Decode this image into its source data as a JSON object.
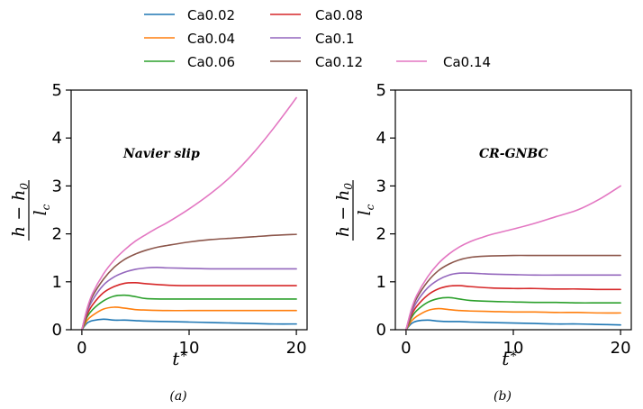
{
  "chart_data": [
    {
      "type": "line",
      "panel_label": "(a)",
      "annotation": "Navier slip",
      "xlabel": "t*",
      "ylabel": "h − h0 / lc",
      "xlim": [
        -1,
        21
      ],
      "ylim": [
        0,
        5
      ],
      "xticks": [
        "0",
        "10",
        "20"
      ],
      "yticks": [
        "0",
        "1",
        "2",
        "3",
        "4",
        "5"
      ],
      "series": [
        {
          "name": "Ca0.02",
          "color": "#1f77b4",
          "x": [
            0,
            0.5,
            1,
            2,
            3,
            4,
            5,
            6,
            8,
            10,
            12,
            14,
            16,
            18,
            20
          ],
          "y": [
            0,
            0.14,
            0.19,
            0.22,
            0.2,
            0.2,
            0.19,
            0.18,
            0.17,
            0.16,
            0.15,
            0.14,
            0.13,
            0.12,
            0.12
          ]
        },
        {
          "name": "Ca0.04",
          "color": "#ff7f0e",
          "x": [
            0,
            0.5,
            1,
            2,
            3,
            4,
            5,
            6,
            8,
            10,
            12,
            14,
            16,
            18,
            20
          ],
          "y": [
            0,
            0.2,
            0.3,
            0.43,
            0.47,
            0.45,
            0.42,
            0.41,
            0.4,
            0.4,
            0.4,
            0.4,
            0.4,
            0.4,
            0.4
          ]
        },
        {
          "name": "Ca0.06",
          "color": "#2ca02c",
          "x": [
            0,
            0.5,
            1,
            2,
            3,
            4,
            5,
            6,
            8,
            10,
            12,
            14,
            16,
            18,
            20
          ],
          "y": [
            0,
            0.27,
            0.42,
            0.6,
            0.7,
            0.72,
            0.69,
            0.65,
            0.64,
            0.64,
            0.64,
            0.64,
            0.64,
            0.64,
            0.64
          ]
        },
        {
          "name": "Ca0.08",
          "color": "#d62728",
          "x": [
            0,
            0.5,
            1,
            2,
            3,
            4,
            5,
            6,
            8,
            10,
            12,
            14,
            16,
            18,
            20
          ],
          "y": [
            0,
            0.32,
            0.52,
            0.77,
            0.9,
            0.97,
            0.98,
            0.96,
            0.93,
            0.92,
            0.92,
            0.92,
            0.92,
            0.92,
            0.92
          ]
        },
        {
          "name": "Ca0.1",
          "color": "#9467bd",
          "x": [
            0,
            0.5,
            1,
            2,
            3,
            4,
            5,
            6,
            7,
            8,
            10,
            12,
            14,
            16,
            18,
            20
          ],
          "y": [
            0,
            0.38,
            0.62,
            0.93,
            1.1,
            1.2,
            1.26,
            1.29,
            1.3,
            1.29,
            1.28,
            1.27,
            1.27,
            1.27,
            1.27,
            1.27
          ]
        },
        {
          "name": "Ca0.12",
          "color": "#8c564b",
          "x": [
            0,
            0.5,
            1,
            2,
            3,
            4,
            5,
            6,
            7,
            8,
            10,
            12,
            14,
            16,
            18,
            20
          ],
          "y": [
            0,
            0.42,
            0.7,
            1.05,
            1.3,
            1.47,
            1.58,
            1.66,
            1.72,
            1.76,
            1.83,
            1.88,
            1.91,
            1.94,
            1.97,
            1.99
          ]
        },
        {
          "name": "Ca0.14",
          "color": "#e377c2",
          "x": [
            0,
            0.5,
            1,
            2,
            3,
            4,
            5,
            6,
            7,
            8,
            10,
            12,
            14,
            16,
            18,
            20
          ],
          "y": [
            0,
            0.45,
            0.76,
            1.16,
            1.45,
            1.67,
            1.85,
            1.99,
            2.12,
            2.24,
            2.52,
            2.84,
            3.22,
            3.69,
            4.24,
            4.84
          ]
        }
      ]
    },
    {
      "type": "line",
      "panel_label": "(b)",
      "annotation": "CR-GNBC",
      "xlabel": "t*",
      "ylabel": "h − h0 / lc",
      "xlim": [
        -1,
        21
      ],
      "ylim": [
        0,
        5
      ],
      "xticks": [
        "0",
        "10",
        "20"
      ],
      "yticks": [
        "0",
        "1",
        "2",
        "3",
        "4",
        "5"
      ],
      "series": [
        {
          "name": "Ca0.02",
          "color": "#1f77b4",
          "x": [
            0,
            0.5,
            1,
            2,
            3,
            4,
            5,
            6,
            8,
            10,
            12,
            14,
            16,
            18,
            20
          ],
          "y": [
            0,
            0.13,
            0.18,
            0.2,
            0.18,
            0.17,
            0.17,
            0.16,
            0.15,
            0.14,
            0.13,
            0.12,
            0.12,
            0.11,
            0.1
          ]
        },
        {
          "name": "Ca0.04",
          "color": "#ff7f0e",
          "x": [
            0,
            0.5,
            1,
            2,
            3,
            4,
            5,
            6,
            8,
            10,
            12,
            14,
            16,
            18,
            20
          ],
          "y": [
            0,
            0.18,
            0.28,
            0.4,
            0.44,
            0.42,
            0.4,
            0.39,
            0.38,
            0.37,
            0.37,
            0.36,
            0.36,
            0.35,
            0.35
          ]
        },
        {
          "name": "Ca0.06",
          "color": "#2ca02c",
          "x": [
            0,
            0.5,
            1,
            2,
            3,
            4,
            5,
            6,
            8,
            10,
            12,
            14,
            16,
            18,
            20
          ],
          "y": [
            0,
            0.25,
            0.4,
            0.57,
            0.65,
            0.67,
            0.64,
            0.61,
            0.59,
            0.58,
            0.57,
            0.57,
            0.56,
            0.56,
            0.56
          ]
        },
        {
          "name": "Ca0.08",
          "color": "#d62728",
          "x": [
            0,
            0.5,
            1,
            2,
            3,
            4,
            5,
            6,
            8,
            10,
            12,
            14,
            16,
            18,
            20
          ],
          "y": [
            0,
            0.3,
            0.49,
            0.72,
            0.85,
            0.91,
            0.92,
            0.9,
            0.87,
            0.86,
            0.86,
            0.85,
            0.85,
            0.84,
            0.84
          ]
        },
        {
          "name": "Ca0.1",
          "color": "#9467bd",
          "x": [
            0,
            0.5,
            1,
            2,
            3,
            4,
            5,
            6,
            7,
            8,
            10,
            12,
            14,
            16,
            18,
            20
          ],
          "y": [
            0,
            0.35,
            0.58,
            0.87,
            1.04,
            1.14,
            1.18,
            1.18,
            1.17,
            1.16,
            1.15,
            1.14,
            1.14,
            1.14,
            1.14,
            1.14
          ]
        },
        {
          "name": "Ca0.12",
          "color": "#8c564b",
          "x": [
            0,
            0.5,
            1,
            2,
            3,
            4,
            5,
            6,
            7,
            8,
            10,
            12,
            14,
            16,
            18,
            20
          ],
          "y": [
            0,
            0.4,
            0.66,
            1.0,
            1.23,
            1.37,
            1.46,
            1.51,
            1.53,
            1.54,
            1.55,
            1.55,
            1.55,
            1.55,
            1.55,
            1.55
          ]
        },
        {
          "name": "Ca0.14",
          "color": "#e377c2",
          "x": [
            0,
            0.5,
            1,
            2,
            3,
            4,
            5,
            6,
            7,
            8,
            10,
            12,
            14,
            16,
            18,
            20
          ],
          "y": [
            0,
            0.43,
            0.72,
            1.1,
            1.38,
            1.58,
            1.73,
            1.84,
            1.92,
            1.99,
            2.1,
            2.22,
            2.36,
            2.5,
            2.72,
            3.0
          ]
        }
      ]
    }
  ]
}
